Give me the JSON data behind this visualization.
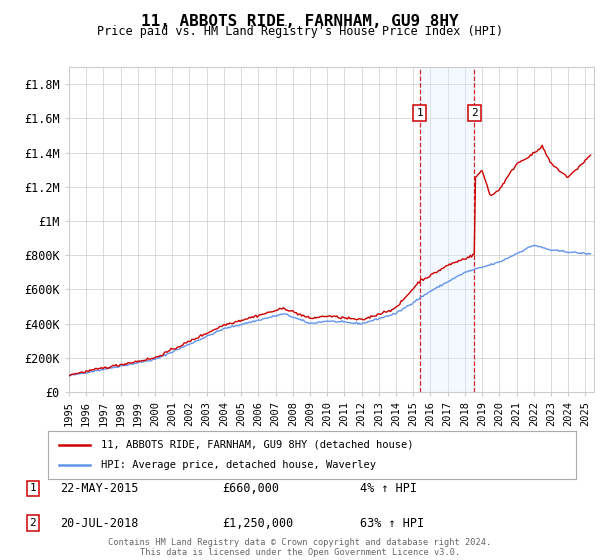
{
  "title": "11, ABBOTS RIDE, FARNHAM, GU9 8HY",
  "subtitle": "Price paid vs. HM Land Registry's House Price Index (HPI)",
  "hpi_label": "HPI: Average price, detached house, Waverley",
  "price_label": "11, ABBOTS RIDE, FARNHAM, GU9 8HY (detached house)",
  "footer": "Contains HM Land Registry data © Crown copyright and database right 2024.\nThis data is licensed under the Open Government Licence v3.0.",
  "annotation1": {
    "num": "1",
    "date": "22-MAY-2015",
    "price": "£660,000",
    "hpi": "4% ↑ HPI"
  },
  "annotation2": {
    "num": "2",
    "date": "20-JUL-2018",
    "price": "£1,250,000",
    "hpi": "63% ↑ HPI"
  },
  "ylim": [
    0,
    1900000
  ],
  "yticks": [
    0,
    200000,
    400000,
    600000,
    800000,
    1000000,
    1200000,
    1400000,
    1600000,
    1800000
  ],
  "ytick_labels": [
    "£0",
    "£200K",
    "£400K",
    "£600K",
    "£800K",
    "£1M",
    "£1.2M",
    "£1.4M",
    "£1.6M",
    "£1.8M"
  ],
  "hpi_color": "#6495ED",
  "price_color": "#CC0000",
  "shade_color": "#ddeeff",
  "marker1_x": 2015.38,
  "marker2_x": 2018.55,
  "xmin": 1995,
  "xmax": 2025.5,
  "background_color": "#ffffff",
  "grid_color": "#cccccc"
}
